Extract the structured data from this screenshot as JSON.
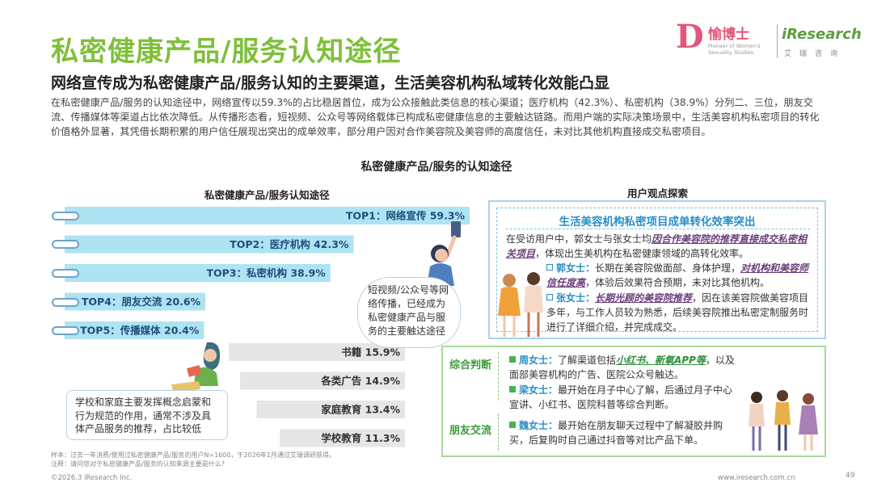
{
  "header": {
    "title": "私密健康产品/服务认知途径",
    "subtitle": "网络宣传成为私密健康产品/服务认知的主要渠道，生活美容机构私域转化效能凸显",
    "intro": "在私密健康产品/服务的认知途径中，网络宣传以59.3%的占比稳居首位，成为公众接触此类信息的核心渠道；医疗机构（42.3%）、私密机构（38.9%）分列二、三位，朋友交流、传播媒体等渠道占比依次降低。从传播形态看，短视频、公众号等网络载体已构成私密健康信息的主要触达链路。而用户端的实际决策场景中，生活美容机构私密项目的转化价值格外显著，其凭借长期积累的用户信任展现出突出的成单效率，部分用户因对合作美容院及美容师的高度信任，未对比其他机构直接成交私密项目。"
  },
  "logo": {
    "brand_mark": "D",
    "brand_cn": "愉博士",
    "brand_en": "Pioneer of Women's Sexuality Studies",
    "partner": "iResearch",
    "partner_cn": "艾瑞咨询"
  },
  "chart_title": "私密健康产品/服务的认知途径",
  "left_title": "私密健康产品/服务认知途径",
  "right_title": "用户观点探索",
  "chart_data": {
    "type": "bar",
    "orientation": "horizontal",
    "title": "私密健康产品/服务认知途径",
    "unit": "%",
    "categories": [
      "网络宣传",
      "医疗机构",
      "私密机构",
      "朋友交流",
      "传播媒体",
      "书籍",
      "各类广告",
      "家庭教育",
      "学校教育"
    ],
    "values": [
      59.3,
      42.3,
      38.9,
      20.6,
      20.4,
      15.9,
      14.9,
      13.4,
      11.3
    ],
    "labels": [
      "TOP1：网络宣传 59.3%",
      "TOP2：医疗机构 42.3%",
      "TOP3：私密机构 38.9%",
      "TOP4：朋友交流 20.6%",
      "TOP5：传播媒体 20.4%",
      "书籍  15.9%",
      "各类广告  14.9%",
      "家庭教育  13.4%",
      "学校教育  11.3%"
    ],
    "top_count": 5,
    "colors": {
      "top": "#aee3f3",
      "other": "#e6e6e6",
      "top_text": "#1f4e7a",
      "other_text": "#333333"
    }
  },
  "bubble_text": "短视频/公众号等网络传播，已经成为私密健康产品与服务的主要触达途径",
  "note_text": "学校和家庭主要发挥概念启蒙和行为规范的作用，通常不涉及具体产品服务的推荐，占比较低",
  "panel_top": {
    "heading": "生活美容机构私密项目成单转化效率突出",
    "p1_a": "在受访用户中，郭女士与张女士均",
    "p1_hl": "因合作美容院的推荐直接成交私密相关项目",
    "p1_b": "，体现出生美机构在私密健康领域的高转化效率。",
    "guo_name": "郭女士：",
    "guo_a": "长期在美容院做面部、身体护理，",
    "guo_hl": "对机构和美容师信任度高",
    "guo_b": "，体验后效果符合预期，未对比其他机构。",
    "zhang_name": "张女士：",
    "zhang_hl": "长期光顾的美容院推荐",
    "zhang_b": "，因在该美容院做美容项目多年，与工作人员较为熟悉，后续美容院推出私密定制服务时进行了详细介绍，并完成成交。"
  },
  "panel_bottom": {
    "tag1": "综合判断",
    "tag2": "朋友交流",
    "zhou_name": "周女士：",
    "zhou_a": "了解渠道包括",
    "zhou_hl": "小红书、新氧APP等",
    "zhou_b": "，以及面部美容机构的广告、医院公众号触达。",
    "liang_name": "梁女士：",
    "liang_a": "最开始在月子中心了解，后通过月子中心宣讲、小红书、医院科普等综合判断。",
    "wei_name": "魏女士：",
    "wei_a": "最开始在朋友聊天过程中了解凝胶并购买，后复购时自己通过抖音等对比产品下单。"
  },
  "footer": {
    "sample": "样本：过去一年消费/使用过私密健康产品/服务的用户N=1600，于2026年1月通过艾瑞调研获得。",
    "note": "注释：请问您对于私密健康产品/服务的认知来源主要是什么?",
    "copyright": "©2026.3 iResearch Inc.",
    "site": "www.iresearch.com.cn",
    "page": "49"
  }
}
